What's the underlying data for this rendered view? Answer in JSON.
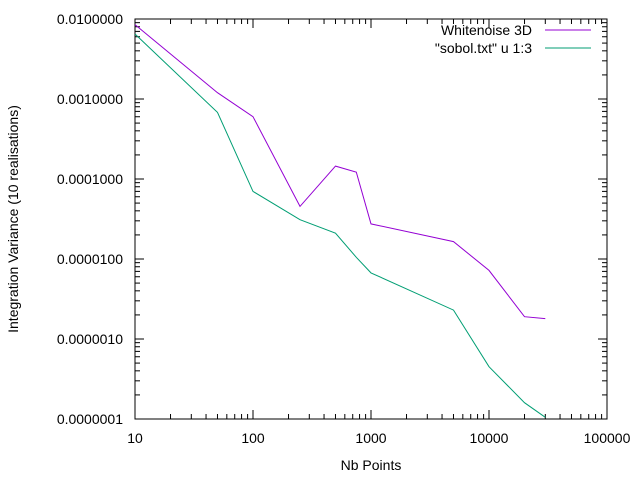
{
  "chart_data": {
    "type": "line",
    "title": "",
    "xlabel": "Nb Points",
    "ylabel": "Integration Variance (10 realisations)",
    "xscale": "log",
    "yscale": "log",
    "xlim": [
      10,
      100000
    ],
    "ylim": [
      1e-07,
      0.01
    ],
    "grid": false,
    "legend_position": "top-right",
    "x_ticks": [
      {
        "value": 10,
        "label": "10"
      },
      {
        "value": 100,
        "label": "100"
      },
      {
        "value": 1000,
        "label": "1000"
      },
      {
        "value": 10000,
        "label": "10000"
      },
      {
        "value": 100000,
        "label": "100000"
      }
    ],
    "y_ticks": [
      {
        "value": 1e-07,
        "label": "0.0000001"
      },
      {
        "value": 1e-06,
        "label": "0.0000010"
      },
      {
        "value": 1e-05,
        "label": "0.0000100"
      },
      {
        "value": 0.0001,
        "label": "0.0001000"
      },
      {
        "value": 0.001,
        "label": "0.0010000"
      },
      {
        "value": 0.01,
        "label": "0.0100000"
      }
    ],
    "series": [
      {
        "name": "Whitenoise 3D",
        "color": "#9400d3",
        "x": [
          10,
          50,
          100,
          250,
          500,
          750,
          1000,
          5000,
          10000,
          20000,
          30000
        ],
        "y": [
          0.0085,
          0.0012,
          0.0006,
          4.55e-05,
          0.000145,
          0.000122,
          2.75e-05,
          1.65e-05,
          7.2e-06,
          1.9e-06,
          1.8e-06
        ]
      },
      {
        "name": "\"sobol.txt\" u 1:3",
        "color": "#009e73",
        "x": [
          10,
          50,
          100,
          250,
          500,
          750,
          1000,
          5000,
          10000,
          20000,
          30000
        ],
        "y": [
          0.0065,
          0.00068,
          7e-05,
          3.1e-05,
          2.1e-05,
          1.05e-05,
          6.7e-06,
          2.3e-06,
          4.5e-07,
          1.6e-07,
          1.05e-07
        ]
      }
    ]
  }
}
